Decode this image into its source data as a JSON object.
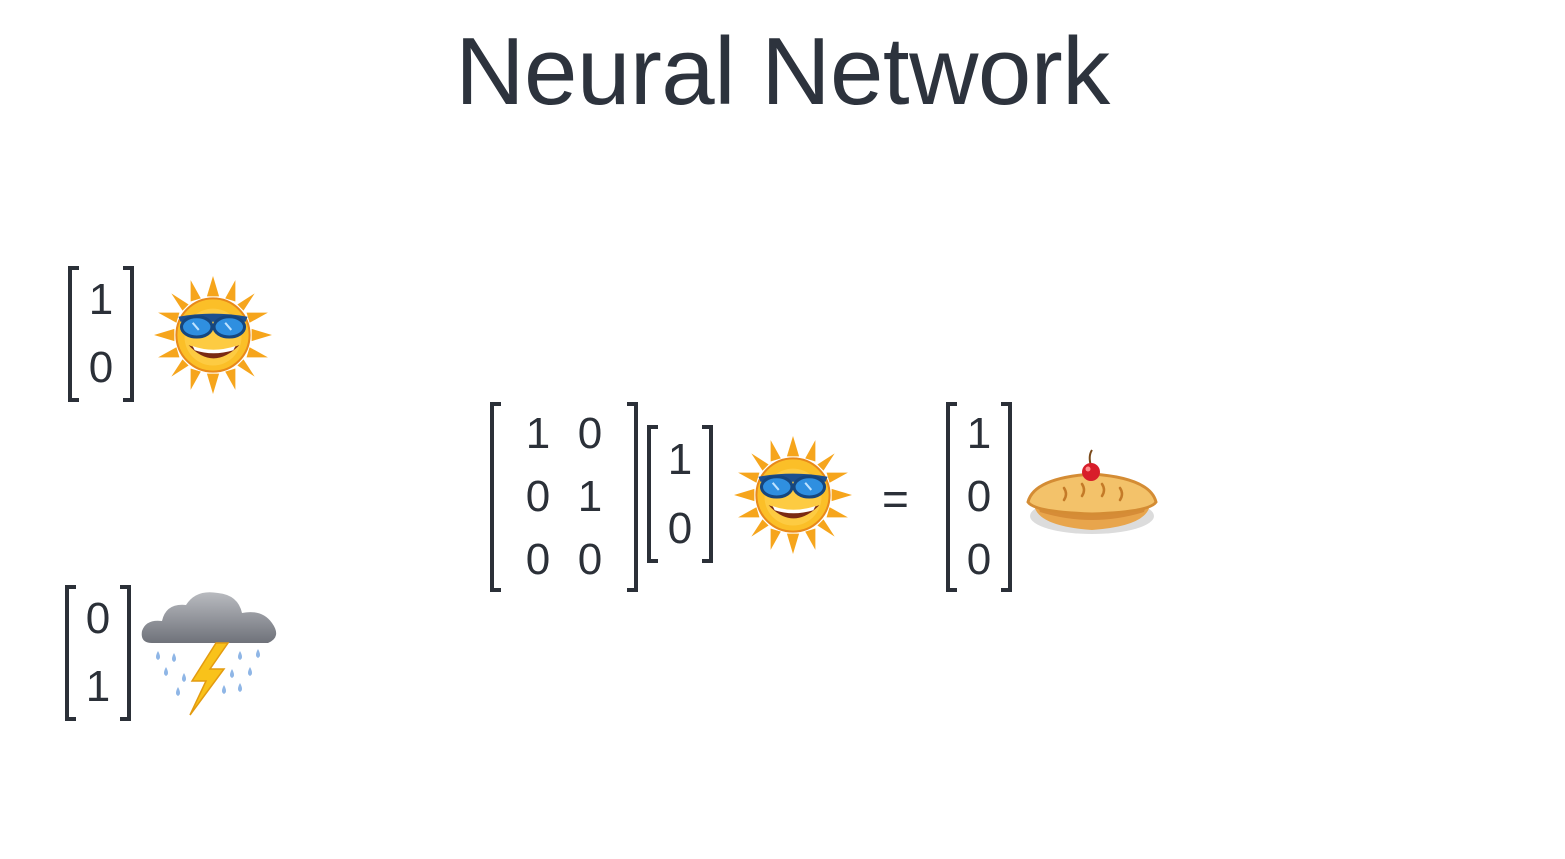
{
  "title": "Neural Network",
  "legend": {
    "sunny_vector": [
      "1",
      "0"
    ],
    "rainy_vector": [
      "0",
      "1"
    ]
  },
  "equation": {
    "weight_matrix": [
      [
        "1",
        "0"
      ],
      [
        "0",
        "1"
      ],
      [
        "0",
        "0"
      ]
    ],
    "input_vector": [
      "1",
      "0"
    ],
    "equals_sign": "=",
    "output_vector": [
      "1",
      "0",
      "0"
    ]
  },
  "icons": {
    "sunny": "sun-with-sunglasses-icon",
    "rainy": "storm-cloud-icon",
    "output": "pie-icon"
  },
  "colors": {
    "text": "#2b3038",
    "sun": "#f6a51c",
    "glasses": "#2f8fe0",
    "cloud": "#8d9097",
    "lightning": "#f9c21a",
    "rain": "#8fb6e6",
    "pie_crust": "#e8a54c",
    "cherry": "#d81e2a"
  }
}
